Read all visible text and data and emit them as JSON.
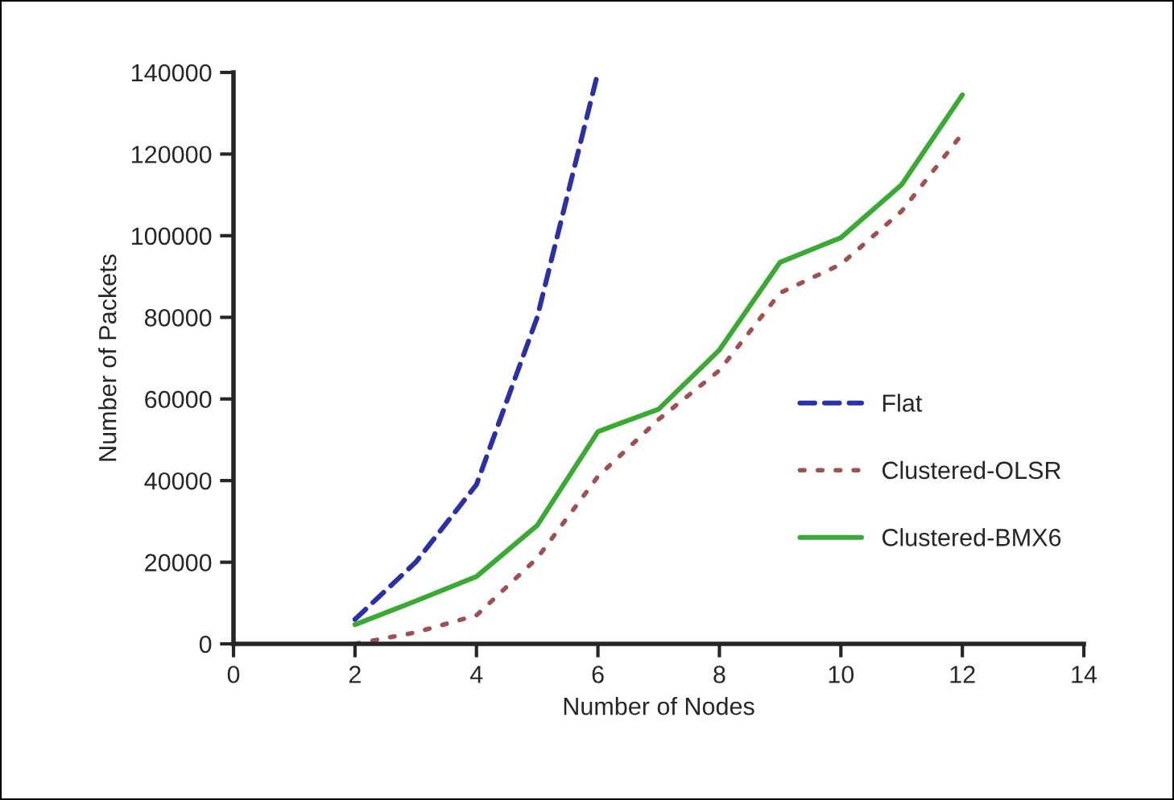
{
  "chart_data": {
    "type": "line",
    "xlabel": "Number of Nodes",
    "ylabel": "Number of Packets",
    "xlim": [
      0,
      14
    ],
    "xticks": [
      0,
      2,
      4,
      6,
      8,
      10,
      12,
      14
    ],
    "ylim": [
      0,
      140000
    ],
    "yticks": [
      0,
      20000,
      40000,
      60000,
      80000,
      100000,
      120000,
      140000
    ],
    "grid": false,
    "legend": "right",
    "marker": "none",
    "series": [
      {
        "name": "Flat",
        "color": "#2b2fa8",
        "line_style": "dashed",
        "x": [
          2,
          3,
          4,
          5,
          6
        ],
        "values": [
          6000,
          20000,
          39000,
          80000,
          140000
        ]
      },
      {
        "name": "Clustered-OLSR",
        "color": "#a05050",
        "line_style": "dotted",
        "x": [
          2,
          3,
          4,
          5,
          6,
          7,
          8,
          9,
          10,
          11,
          12
        ],
        "values": [
          0,
          2800,
          7000,
          21000,
          41000,
          55000,
          67000,
          86000,
          93000,
          106000,
          125000
        ]
      },
      {
        "name": "Clustered-BMX6",
        "color": "#3aaa35",
        "line_style": "solid",
        "x": [
          2,
          3,
          4,
          5,
          6,
          7,
          8,
          9,
          10,
          11,
          12
        ],
        "values": [
          4700,
          10500,
          16500,
          29000,
          52000,
          57500,
          72000,
          93500,
          99500,
          112500,
          134500
        ]
      }
    ]
  }
}
